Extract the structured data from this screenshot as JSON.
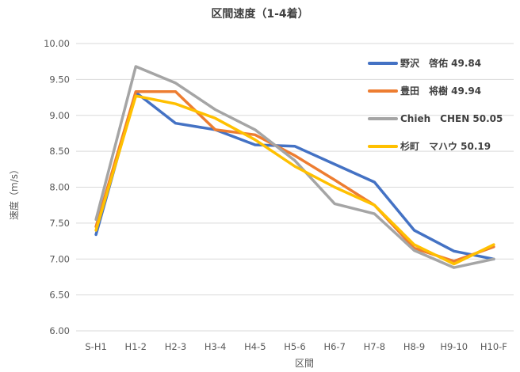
{
  "chart_data": {
    "type": "line",
    "title": "区間速度（1-4着）",
    "xlabel": "区間",
    "ylabel": "速度（m/s）",
    "ylim": [
      6.0,
      10.0
    ],
    "yticks": [
      "6.00",
      "6.50",
      "7.00",
      "7.50",
      "8.00",
      "8.50",
      "9.00",
      "9.50",
      "10.00"
    ],
    "grid": "horizontal",
    "legend_position": "top-right",
    "categories": [
      "S-H1",
      "H1-2",
      "H2-3",
      "H3-4",
      "H4-5",
      "H5-6",
      "H6-7",
      "H7-8",
      "H8-9",
      "H9-10",
      "H10-F"
    ],
    "series": [
      {
        "name": "野沢　啓佑 49.84",
        "color": "#4472C4",
        "values": [
          7.34,
          9.32,
          8.89,
          8.8,
          8.59,
          8.57,
          8.32,
          8.07,
          7.4,
          7.11,
          7.0
        ]
      },
      {
        "name": "豊田　将樹 49.94",
        "color": "#ED7D31",
        "values": [
          7.45,
          9.33,
          9.33,
          8.8,
          8.73,
          8.44,
          8.1,
          7.75,
          7.15,
          6.97,
          7.17
        ]
      },
      {
        "name": "Chieh　CHEN 50.05",
        "color": "#A5A5A5",
        "values": [
          7.55,
          9.68,
          9.45,
          9.08,
          8.8,
          8.37,
          7.77,
          7.63,
          7.12,
          6.88,
          7.0
        ]
      },
      {
        "name": "杉町　マハウ 50.19",
        "color": "#FFC000",
        "values": [
          7.4,
          9.27,
          9.16,
          8.96,
          8.66,
          8.29,
          8.0,
          7.75,
          7.2,
          6.93,
          7.2
        ]
      }
    ]
  }
}
